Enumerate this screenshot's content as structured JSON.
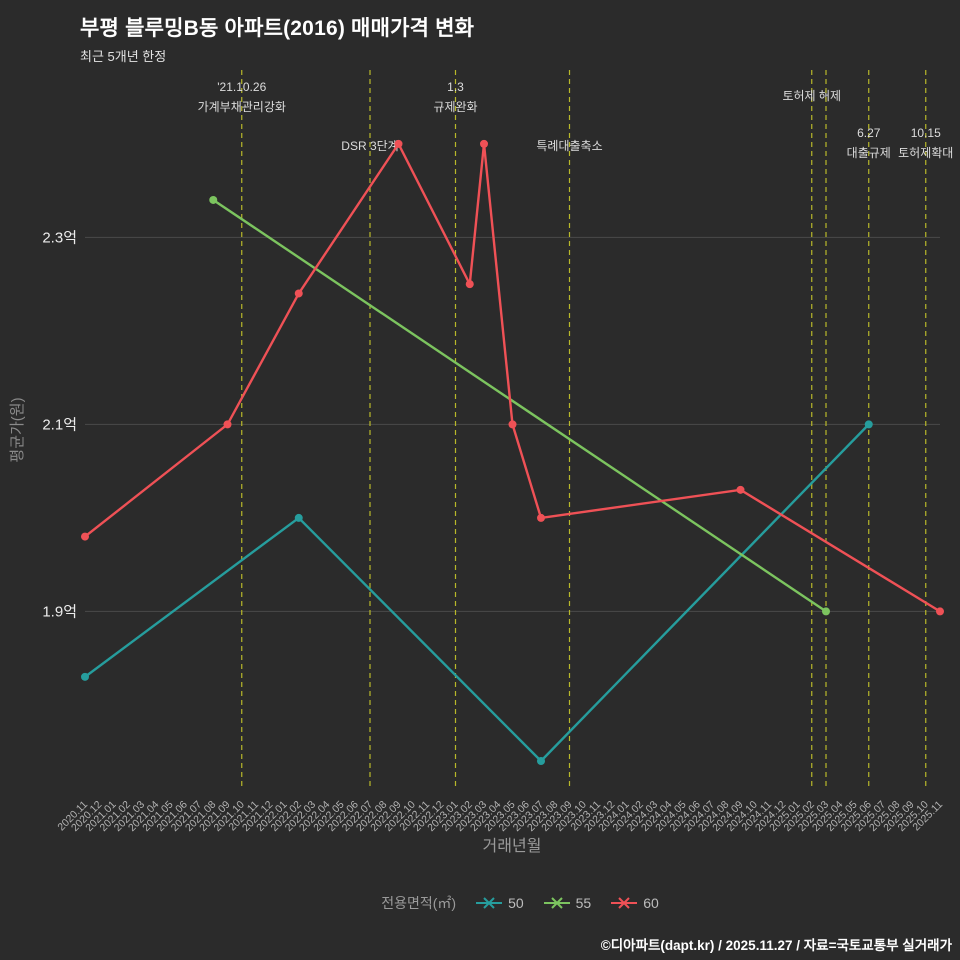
{
  "header": {
    "title": "부평 블루밍B동 아파트(2016) 매매가격 변화",
    "subtitle": "최근 5개년 한정"
  },
  "footer": {
    "credit": "©디아파트(dapt.kr) / 2025.11.27 / 자료=국토교통부 실거래가"
  },
  "legend": {
    "label": "전용면적(㎡)",
    "items": [
      {
        "name": "50",
        "color": "#269d9d"
      },
      {
        "name": "55",
        "color": "#7cc45f"
      },
      {
        "name": "60",
        "color": "#ef5156"
      }
    ]
  },
  "chart_data": {
    "type": "line",
    "title": "부평 블루밍B동 아파트(2016) 매매가격 변화",
    "subtitle": "최근 5개년 한정",
    "xlabel": "거래년월",
    "ylabel": "평균가(원)",
    "value_unit": "억",
    "ylim": [
      1.709,
      2.479
    ],
    "yticks": [
      {
        "value": 2.3,
        "label": "2.3억"
      },
      {
        "value": 2.1,
        "label": "2.1억"
      },
      {
        "value": 1.9,
        "label": "1.9억"
      }
    ],
    "grid": "horizontal",
    "legend_position": "bottom",
    "event_line_color": "#b8b82a",
    "x_categories": [
      "2020.11",
      "2020.12",
      "2021.01",
      "2021.02",
      "2021.03",
      "2021.04",
      "2021.05",
      "2021.06",
      "2021.07",
      "2021.08",
      "2021.09",
      "2021.10",
      "2021.11",
      "2021.12",
      "2022.01",
      "2022.02",
      "2022.03",
      "2022.04",
      "2022.05",
      "2022.06",
      "2022.07",
      "2022.08",
      "2022.09",
      "2022.10",
      "2022.11",
      "2022.12",
      "2023.01",
      "2023.02",
      "2023.03",
      "2023.04",
      "2023.05",
      "2023.06",
      "2023.07",
      "2023.08",
      "2023.09",
      "2023.10",
      "2023.11",
      "2023.12",
      "2024.01",
      "2024.02",
      "2024.03",
      "2024.04",
      "2024.05",
      "2024.06",
      "2024.07",
      "2024.08",
      "2024.09",
      "2024.10",
      "2024.11",
      "2024.12",
      "2025.01",
      "2025.02",
      "2025.03",
      "2025.04",
      "2025.05",
      "2025.06",
      "2025.07",
      "2025.08",
      "2025.09",
      "2025.10",
      "2025.11"
    ],
    "series": [
      {
        "name": "50",
        "color": "#269d9d",
        "points": [
          [
            "2020.11",
            1.83
          ],
          [
            "2022.02",
            2.0
          ],
          [
            "2023.07",
            1.74
          ],
          [
            "2025.06",
            2.1
          ]
        ]
      },
      {
        "name": "55",
        "color": "#7cc45f",
        "points": [
          [
            "2021.08",
            2.34
          ],
          [
            "2025.03",
            1.9
          ]
        ]
      },
      {
        "name": "60",
        "color": "#ef5156",
        "points": [
          [
            "2020.11",
            1.98
          ],
          [
            "2021.09",
            2.1
          ],
          [
            "2022.02",
            2.24
          ],
          [
            "2022.09",
            2.4
          ],
          [
            "2023.02",
            2.25
          ],
          [
            "2023.03",
            2.4
          ],
          [
            "2023.05",
            2.1
          ],
          [
            "2023.07",
            2.0
          ],
          [
            "2024.09",
            2.03
          ],
          [
            "2025.11",
            1.9
          ]
        ]
      }
    ],
    "events": [
      {
        "x": "2021.10",
        "label": [
          "'21.10.26",
          "가계부채관리강화"
        ],
        "label_y": [
          91,
          111
        ]
      },
      {
        "x": "2022.07",
        "label": [
          "DSR 3단계"
        ],
        "label_y": [
          150
        ]
      },
      {
        "x": "2023.01",
        "label": [
          "1.3",
          "규제완화"
        ],
        "label_y": [
          91,
          111
        ]
      },
      {
        "x": "2023.09",
        "label": [
          "특례대출축소"
        ],
        "label_y": [
          150
        ]
      },
      {
        "x": "2025.02",
        "label": [
          "토허제 해제"
        ],
        "label_y": [
          100
        ]
      },
      {
        "x": "2025.03",
        "label": [],
        "label_y": []
      },
      {
        "x": "2025.06",
        "label": [
          "6.27",
          "대출규제"
        ],
        "label_y": [
          137,
          157
        ]
      },
      {
        "x": "2025.10",
        "label": [
          "10.15",
          "토허제확대"
        ],
        "label_y": [
          137,
          157
        ]
      }
    ]
  }
}
